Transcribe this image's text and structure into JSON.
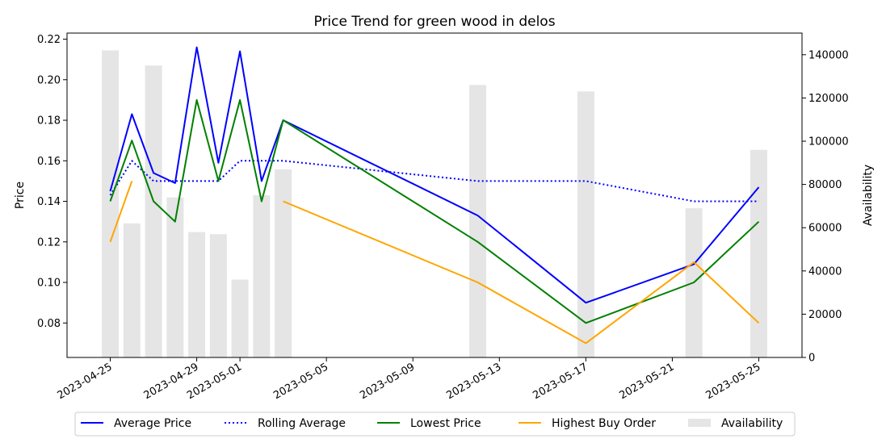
{
  "chart_data": {
    "type": "line",
    "title": "Price Trend for green wood in delos",
    "xlabel": "",
    "ylabel": "Price",
    "y2label": "Availability",
    "x_ticks": [
      "2023-04-25",
      "2023-04-29",
      "2023-05-01",
      "2023-05-05",
      "2023-05-09",
      "2023-05-13",
      "2023-05-17",
      "2023-05-21",
      "2023-05-25"
    ],
    "xlim": [
      "2023-04-23",
      "2023-05-27"
    ],
    "ylim": [
      0.063,
      0.223
    ],
    "y_ticks": [
      "0.08",
      "0.10",
      "0.12",
      "0.14",
      "0.16",
      "0.18",
      "0.20",
      "0.22"
    ],
    "y2lim": [
      0,
      150000
    ],
    "y2_ticks": [
      "0",
      "20000",
      "40000",
      "60000",
      "80000",
      "100000",
      "120000",
      "140000"
    ],
    "grid": false,
    "legend_position": "bottom",
    "series": [
      {
        "name": "Average Price",
        "style": "solid",
        "color": "#0000ff",
        "points": [
          [
            "2023-04-25",
            0.145
          ],
          [
            "2023-04-26",
            0.183
          ],
          [
            "2023-04-27",
            0.154
          ],
          [
            "2023-04-28",
            0.149
          ],
          [
            "2023-04-29",
            0.216
          ],
          [
            "2023-04-30",
            0.159
          ],
          [
            "2023-05-01",
            0.214
          ],
          [
            "2023-05-02",
            0.15
          ],
          [
            "2023-05-03",
            0.18
          ],
          [
            "2023-05-12",
            0.133
          ],
          [
            "2023-05-17",
            0.09
          ],
          [
            "2023-05-22",
            0.109
          ],
          [
            "2023-05-25",
            0.147
          ]
        ]
      },
      {
        "name": "Rolling Average",
        "style": "dotted",
        "color": "#0000ff",
        "points": [
          [
            "2023-04-25",
            0.143
          ],
          [
            "2023-04-26",
            0.16
          ],
          [
            "2023-04-27",
            0.15
          ],
          [
            "2023-04-28",
            0.15
          ],
          [
            "2023-04-29",
            0.15
          ],
          [
            "2023-04-30",
            0.15
          ],
          [
            "2023-05-01",
            0.16
          ],
          [
            "2023-05-02",
            0.16
          ],
          [
            "2023-05-03",
            0.16
          ],
          [
            "2023-05-12",
            0.15
          ],
          [
            "2023-05-17",
            0.15
          ],
          [
            "2023-05-22",
            0.14
          ],
          [
            "2023-05-25",
            0.14
          ]
        ]
      },
      {
        "name": "Lowest Price",
        "style": "solid",
        "color": "#008000",
        "points": [
          [
            "2023-04-25",
            0.14
          ],
          [
            "2023-04-26",
            0.17
          ],
          [
            "2023-04-27",
            0.14
          ],
          [
            "2023-04-28",
            0.13
          ],
          [
            "2023-04-29",
            0.19
          ],
          [
            "2023-04-30",
            0.15
          ],
          [
            "2023-05-01",
            0.19
          ],
          [
            "2023-05-02",
            0.14
          ],
          [
            "2023-05-03",
            0.18
          ],
          [
            "2023-05-12",
            0.12
          ],
          [
            "2023-05-17",
            0.08
          ],
          [
            "2023-05-22",
            0.1
          ],
          [
            "2023-05-25",
            0.13
          ]
        ]
      },
      {
        "name": "Highest Buy Order",
        "style": "solid",
        "color": "#ffa500",
        "segments": [
          [
            [
              "2023-04-25",
              0.12
            ],
            [
              "2023-04-26",
              0.15
            ]
          ],
          [
            [
              "2023-05-03",
              0.14
            ],
            [
              "2023-05-12",
              0.1
            ],
            [
              "2023-05-17",
              0.07
            ],
            [
              "2023-05-22",
              0.11
            ],
            [
              "2023-05-25",
              0.08
            ]
          ]
        ]
      }
    ],
    "bars": {
      "name": "Availability",
      "color": "#e5e5e5",
      "points": [
        [
          "2023-04-25",
          142000
        ],
        [
          "2023-04-26",
          62000
        ],
        [
          "2023-04-27",
          135000
        ],
        [
          "2023-04-28",
          74000
        ],
        [
          "2023-04-29",
          58000
        ],
        [
          "2023-04-30",
          57000
        ],
        [
          "2023-05-01",
          36000
        ],
        [
          "2023-05-02",
          75000
        ],
        [
          "2023-05-03",
          87000
        ],
        [
          "2023-05-12",
          126000
        ],
        [
          "2023-05-17",
          123000
        ],
        [
          "2023-05-22",
          69000
        ],
        [
          "2023-05-25",
          96000
        ]
      ]
    },
    "legend": [
      "Average Price",
      "Rolling Average",
      "Lowest Price",
      "Highest Buy Order",
      "Availability"
    ]
  }
}
